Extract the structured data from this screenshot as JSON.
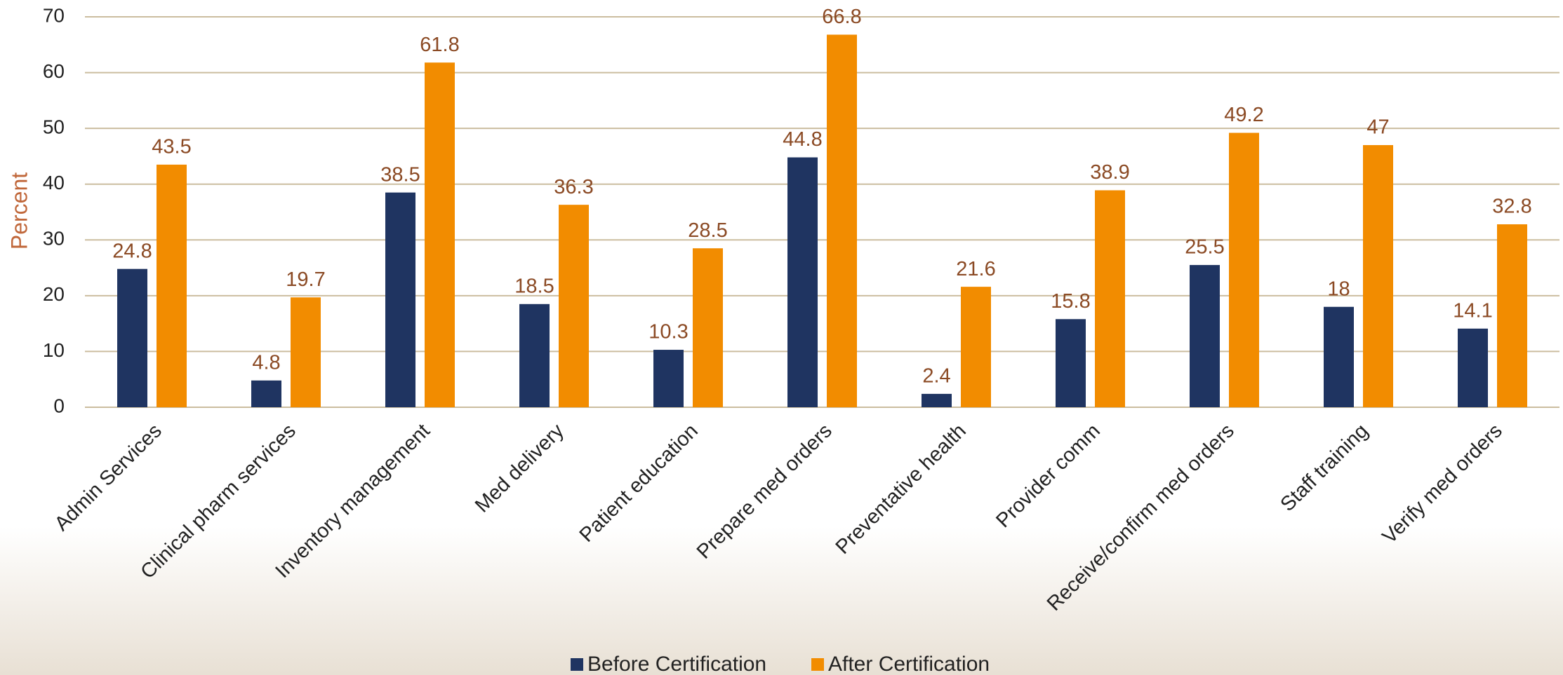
{
  "chart_data": {
    "type": "bar",
    "y_axis_label": "Percent",
    "categories": [
      "Admin Services",
      "Clinical pharm services",
      "Inventory management",
      "Med delivery",
      "Patient education",
      "Prepare med orders",
      "Preventative health",
      "Provider comm",
      "Receive/confirm med orders",
      "Staff training",
      "Verify med orders"
    ],
    "series": [
      {
        "name": "Before Certification",
        "color": "#1f3461",
        "values": [
          24.8,
          4.8,
          38.5,
          18.5,
          10.3,
          44.8,
          2.4,
          15.8,
          25.5,
          18,
          14.1
        ]
      },
      {
        "name": "After Certification",
        "color": "#f28c00",
        "values": [
          43.5,
          19.7,
          61.8,
          36.3,
          28.5,
          66.8,
          21.6,
          38.9,
          49.2,
          47,
          32.8
        ]
      }
    ],
    "ylim": [
      0,
      70
    ],
    "yticks": [
      0,
      10,
      20,
      30,
      40,
      50,
      60,
      70
    ],
    "grid": true,
    "legend": "bottom"
  }
}
